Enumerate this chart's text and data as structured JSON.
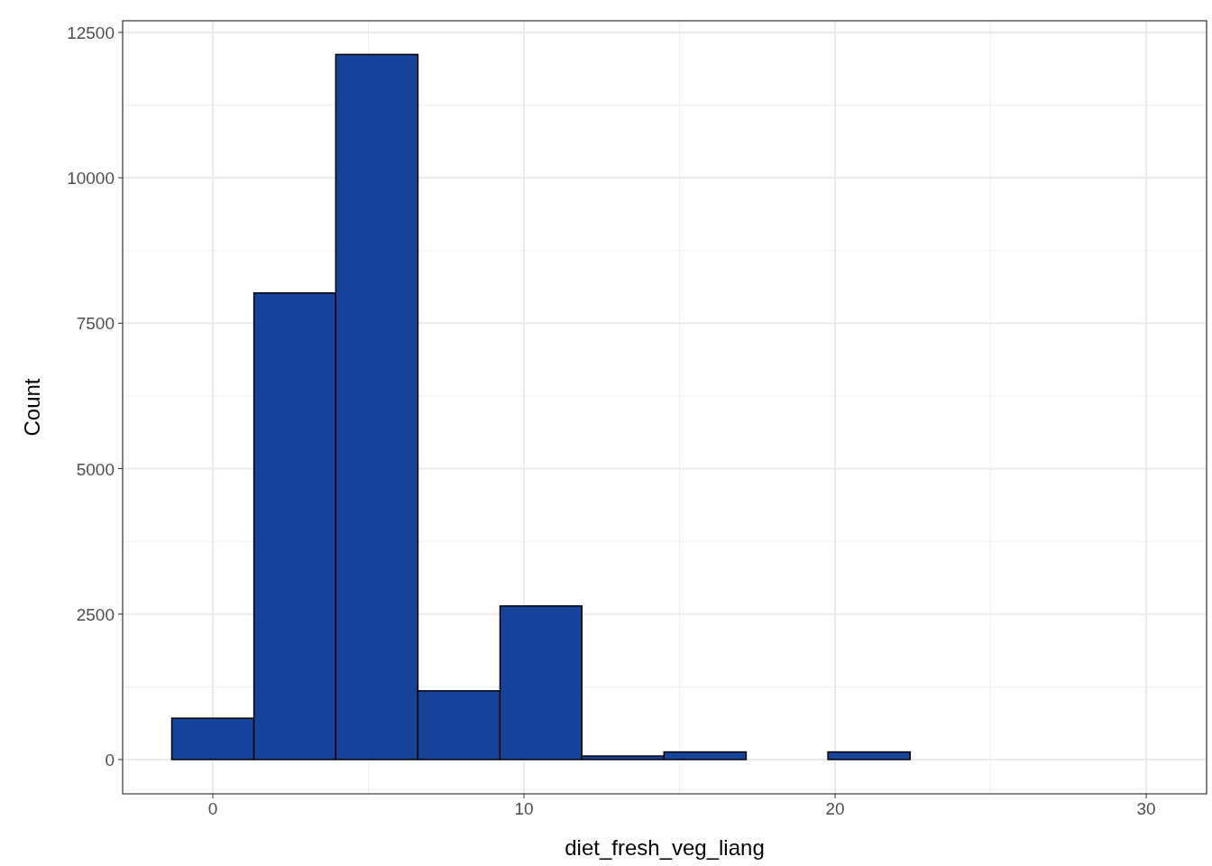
{
  "chart_data": {
    "type": "histogram",
    "xlabel": "diet_fresh_veg_liang",
    "ylabel": "Count",
    "bins": [
      -1.32,
      1.32,
      3.95,
      6.59,
      9.23,
      11.86,
      14.5,
      17.14,
      19.77,
      22.41,
      25.05,
      27.68,
      30.32
    ],
    "values": [
      710,
      8020,
      12120,
      1180,
      2640,
      60,
      130,
      0,
      130,
      0,
      0,
      0
    ],
    "color": "#18439a",
    "xlim": [
      -2.9,
      31.94
    ],
    "ylim": [
      -590,
      12700
    ],
    "xticks": [
      0,
      10,
      20,
      30
    ],
    "yticks": [
      0,
      2500,
      5000,
      7500,
      10000,
      12500
    ],
    "grid": true
  }
}
